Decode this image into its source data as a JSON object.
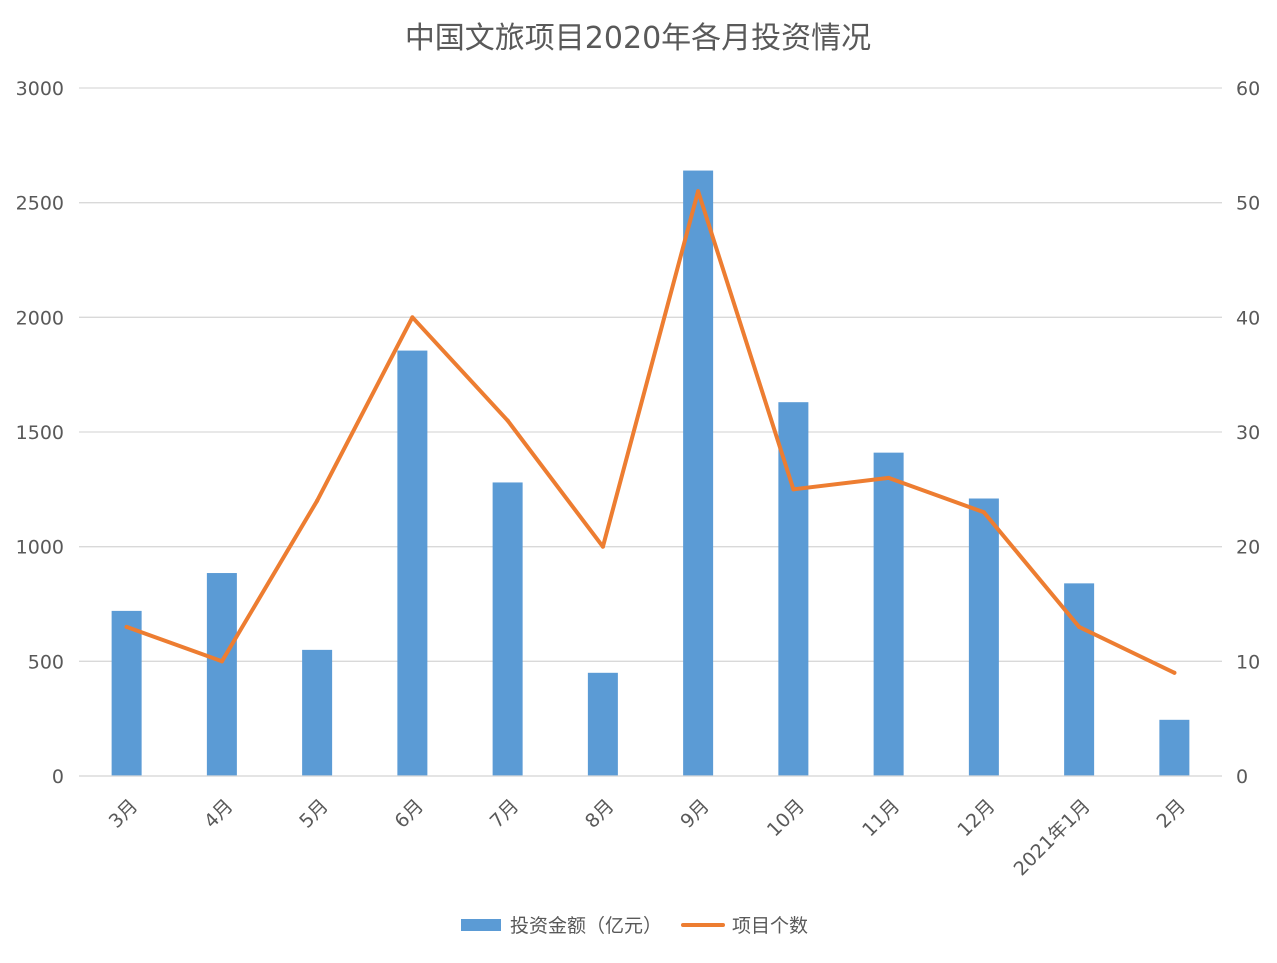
{
  "chart_data": {
    "type": "bar",
    "title": "中国文旅项目2020年各月投资情况",
    "categories": [
      "3月",
      "4月",
      "5月",
      "6月",
      "7月",
      "8月",
      "9月",
      "10月",
      "11月",
      "12月",
      "2021年1月",
      "2月"
    ],
    "series": [
      {
        "name": "投资金额（亿元）",
        "type": "bar",
        "axis": "left",
        "color": "#5B9BD5",
        "values": [
          720,
          885,
          550,
          1855,
          1280,
          450,
          2640,
          1630,
          1410,
          1210,
          840,
          245
        ]
      },
      {
        "name": "项目个数",
        "type": "line",
        "axis": "right",
        "color": "#ED7D31",
        "values": [
          13,
          10,
          24,
          40,
          31,
          20,
          51,
          25,
          26,
          23,
          13,
          9
        ]
      }
    ],
    "y_left": {
      "min": 0,
      "max": 3000,
      "ticks": [
        "0",
        "500",
        "1000",
        "1500",
        "2000",
        "2500",
        "3000"
      ]
    },
    "y_right": {
      "min": 0,
      "max": 60,
      "ticks": [
        "0",
        "10",
        "20",
        "30",
        "40",
        "50",
        "60"
      ]
    },
    "grid": true,
    "legend": "bottom"
  }
}
